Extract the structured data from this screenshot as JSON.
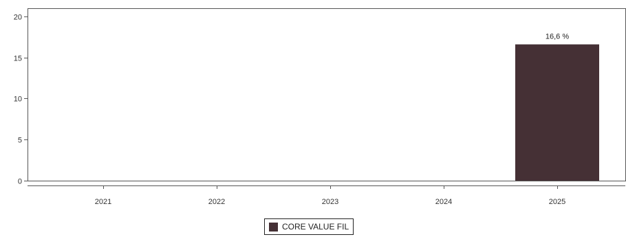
{
  "chart_data": {
    "type": "bar",
    "categories": [
      "2021",
      "2022",
      "2023",
      "2024",
      "2025"
    ],
    "series": [
      {
        "name": "CORE VALUE FIL",
        "values": [
          null,
          null,
          null,
          null,
          16.6
        ],
        "data_labels": [
          "",
          "",
          "",
          "",
          "16,6 %"
        ],
        "color": "#453035"
      }
    ],
    "ylim": [
      0,
      21
    ],
    "yticks": [
      0,
      5,
      10,
      15,
      20
    ],
    "ytick_labels": [
      "0",
      "5",
      "10",
      "15",
      "20"
    ],
    "grid": false,
    "legend_position": "bottom-center"
  },
  "legend": {
    "label": "CORE VALUE FIL",
    "color": "#453035"
  }
}
